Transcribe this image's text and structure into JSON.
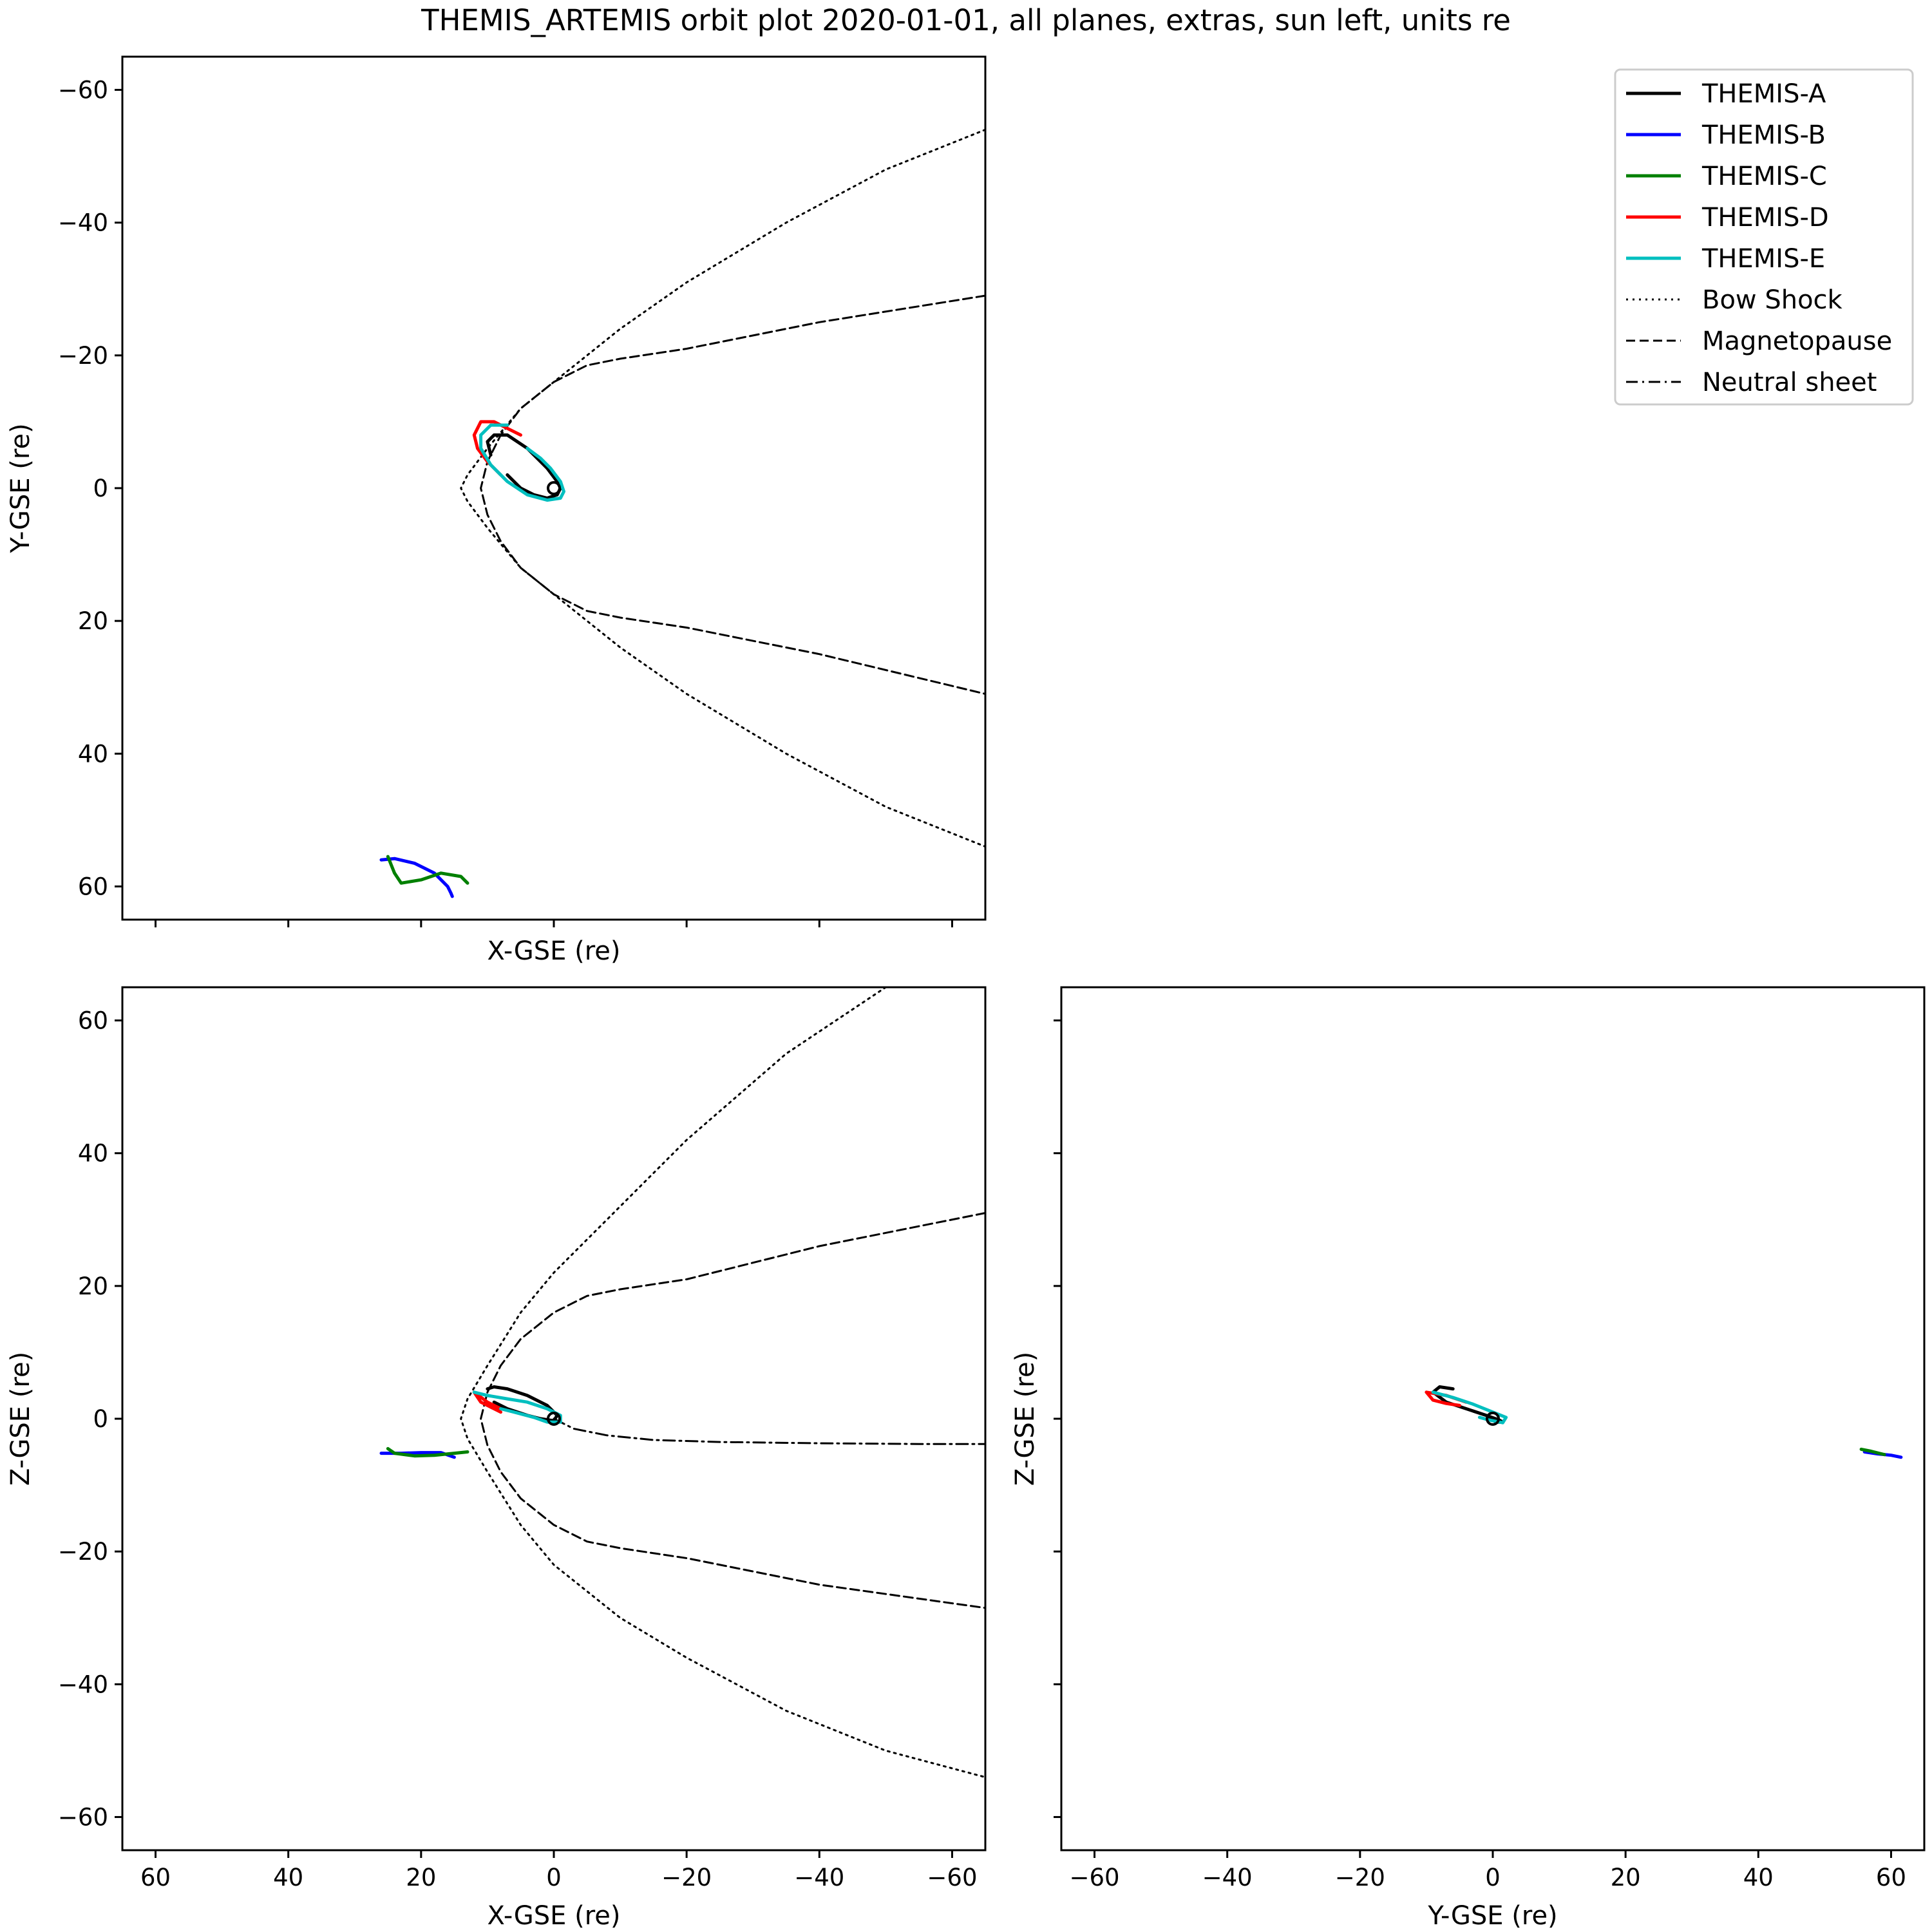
{
  "figure": {
    "title": "THEMIS_ARTEMIS orbit plot 2020-01-01, all planes, extras, sun left, units re"
  },
  "colors": {
    "THEMIS-A": "#000000",
    "THEMIS-B": "#0000ff",
    "THEMIS-C": "#008000",
    "THEMIS-D": "#ff0000",
    "THEMIS-E": "#00bfbf",
    "model_lines": "#000000"
  },
  "legend": {
    "placement": "top-right",
    "entries": [
      {
        "label": "THEMIS-A",
        "style": "solid",
        "color": "#000000"
      },
      {
        "label": "THEMIS-B",
        "style": "solid",
        "color": "#0000ff"
      },
      {
        "label": "THEMIS-C",
        "style": "solid",
        "color": "#008000"
      },
      {
        "label": "THEMIS-D",
        "style": "solid",
        "color": "#ff0000"
      },
      {
        "label": "THEMIS-E",
        "style": "solid",
        "color": "#00bfbf"
      },
      {
        "label": "Bow Shock",
        "style": "dotted",
        "color": "#000000"
      },
      {
        "label": "Magnetopause",
        "style": "dashed",
        "color": "#000000"
      },
      {
        "label": "Neutral sheet",
        "style": "dashdot",
        "color": "#000000"
      }
    ]
  },
  "chart_data": [
    {
      "id": "xy",
      "type": "line",
      "title": "",
      "xlabel": "X-GSE (re)",
      "ylabel": "Y-GSE (re)",
      "xlim": [
        65,
        -65
      ],
      "ylim": [
        65,
        -65
      ],
      "xticks": [
        60,
        40,
        20,
        0,
        -20,
        -40,
        -60
      ],
      "yticks": [
        -60,
        -40,
        -20,
        0,
        20,
        40,
        60
      ],
      "show_xtick_labels": false,
      "grid": false,
      "series": [
        {
          "name": "Bow Shock",
          "style": "dotted",
          "color": "#000000",
          "x": [
            -65,
            -50,
            -35,
            -20,
            -10,
            0,
            5,
            10,
            13,
            14,
            13,
            10,
            5,
            0,
            -10,
            -20,
            -35,
            -50,
            -65
          ],
          "y": [
            -54,
            -48,
            -40,
            -31,
            -24,
            -16,
            -12,
            -6,
            -2,
            0,
            2,
            6,
            12,
            16,
            24,
            31,
            40,
            48,
            54
          ]
        },
        {
          "name": "Magnetopause",
          "style": "dashed",
          "color": "#000000",
          "x": [
            -65,
            -40,
            -20,
            -10,
            -5,
            0,
            5,
            8,
            10,
            11,
            10,
            8,
            5,
            0,
            -5,
            -10,
            -20,
            -40,
            -65
          ],
          "y": [
            -29,
            -25,
            -21,
            -19.5,
            -18.5,
            -16,
            -12,
            -8,
            -4,
            0,
            4,
            8,
            12,
            16,
            18.5,
            19.5,
            21,
            25,
            31
          ]
        },
        {
          "name": "THEMIS-A",
          "style": "solid",
          "color": "#000000",
          "x": [
            9.5,
            10,
            9,
            7,
            4,
            1,
            -0.5,
            -1,
            -0.5,
            1,
            3,
            5,
            7
          ],
          "y": [
            -5,
            -7,
            -8,
            -8,
            -6,
            -3,
            -1,
            0,
            1,
            1.5,
            1,
            0,
            -2
          ]
        },
        {
          "name": "THEMIS-B",
          "style": "solid",
          "color": "#0000ff",
          "x": [
            26,
            24,
            21,
            18,
            16,
            15.5,
            15.3
          ],
          "y": [
            56,
            55.8,
            56.5,
            58,
            60,
            61,
            61.5
          ]
        },
        {
          "name": "THEMIS-C",
          "style": "solid",
          "color": "#008000",
          "x": [
            25,
            24,
            23,
            20,
            17,
            14,
            13
          ],
          "y": [
            55.5,
            58,
            59.5,
            59,
            58,
            58.5,
            59.5
          ]
        },
        {
          "name": "THEMIS-D",
          "style": "solid",
          "color": "#ff0000",
          "x": [
            8,
            10,
            11.5,
            12,
            11,
            9,
            7,
            5
          ],
          "y": [
            -2,
            -4,
            -6,
            -8,
            -10,
            -10,
            -9,
            -8
          ]
        },
        {
          "name": "THEMIS-E",
          "style": "solid",
          "color": "#00bfbf",
          "x": [
            4,
            2,
            0.5,
            -1,
            -1.5,
            -1,
            1,
            4,
            7,
            9.5,
            11,
            11,
            9.5,
            7
          ],
          "y": [
            -6,
            -4.5,
            -3,
            -1,
            0.5,
            1.5,
            1.8,
            1,
            -1,
            -3.5,
            -6,
            -8,
            -9.5,
            -9.5
          ]
        }
      ]
    },
    {
      "id": "xz",
      "type": "line",
      "title": "",
      "xlabel": "X-GSE (re)",
      "ylabel": "Z-GSE (re)",
      "xlim": [
        65,
        -65
      ],
      "ylim": [
        -65,
        65
      ],
      "xticks": [
        60,
        40,
        20,
        0,
        -20,
        -40,
        -60
      ],
      "yticks": [
        60,
        40,
        20,
        0,
        -20,
        -40,
        -60
      ],
      "show_xtick_labels": true,
      "grid": false,
      "series": [
        {
          "name": "Bow Shock",
          "style": "dotted",
          "color": "#000000",
          "x": [
            -50,
            -35,
            -20,
            -10,
            0,
            5,
            10,
            13,
            14,
            13,
            10,
            5,
            0,
            -10,
            -20,
            -35,
            -50,
            -65
          ],
          "y": [
            65,
            55,
            42,
            32,
            22,
            16,
            8,
            3,
            0,
            -3,
            -8,
            -16,
            -22,
            -30,
            -36,
            -44,
            -50,
            -54
          ]
        },
        {
          "name": "Magnetopause",
          "style": "dashed",
          "color": "#000000",
          "x": [
            -65,
            -40,
            -20,
            -10,
            -5,
            0,
            5,
            8,
            10,
            11,
            10,
            8,
            5,
            0,
            -5,
            -10,
            -20,
            -40,
            -65
          ],
          "y": [
            31,
            26,
            21,
            19.5,
            18.5,
            16,
            12,
            8,
            4,
            0,
            -4,
            -8,
            -12,
            -16,
            -18.5,
            -19.5,
            -21,
            -25,
            -28.5
          ]
        },
        {
          "name": "Neutral sheet",
          "style": "dashdot",
          "color": "#000000",
          "x": [
            0,
            -3,
            -8,
            -15,
            -25,
            -40,
            -55,
            -65
          ],
          "y": [
            0,
            -1.5,
            -2.5,
            -3.2,
            -3.5,
            -3.7,
            -3.8,
            -3.8
          ]
        },
        {
          "name": "THEMIS-A",
          "style": "solid",
          "color": "#000000",
          "x": [
            10,
            9,
            7,
            4,
            1,
            -0.5,
            0,
            2,
            4,
            7,
            9
          ],
          "y": [
            4.5,
            4.8,
            4.5,
            3.5,
            2,
            0.5,
            -0.3,
            0,
            0.5,
            1.5,
            2.5
          ]
        },
        {
          "name": "THEMIS-B",
          "style": "solid",
          "color": "#0000ff",
          "x": [
            26,
            23,
            20,
            17,
            15
          ],
          "y": [
            -5.2,
            -5.2,
            -5.1,
            -5.1,
            -5.8
          ]
        },
        {
          "name": "THEMIS-C",
          "style": "solid",
          "color": "#008000",
          "x": [
            25,
            24,
            21,
            18,
            15,
            13
          ],
          "y": [
            -4.5,
            -5.2,
            -5.6,
            -5.5,
            -5.2,
            -5
          ]
        },
        {
          "name": "THEMIS-D",
          "style": "solid",
          "color": "#ff0000",
          "x": [
            8,
            10,
            12,
            11,
            9,
            8
          ],
          "y": [
            1.5,
            2.5,
            4,
            2.5,
            1.5,
            1
          ]
        },
        {
          "name": "THEMIS-E",
          "style": "solid",
          "color": "#00bfbf",
          "x": [
            12,
            10,
            7,
            4,
            1,
            -1,
            -1,
            1,
            3,
            6,
            8
          ],
          "y": [
            4,
            3.5,
            3,
            2.5,
            1.5,
            0.5,
            -0.5,
            -0.5,
            0.2,
            1,
            1.5
          ]
        }
      ]
    },
    {
      "id": "yz",
      "type": "line",
      "title": "",
      "xlabel": "Y-GSE (re)",
      "ylabel": "Z-GSE (re)",
      "xlim": [
        -65,
        65
      ],
      "ylim": [
        -65,
        65
      ],
      "xticks": [
        -60,
        -40,
        -20,
        0,
        20,
        40,
        60
      ],
      "yticks": [
        60,
        40,
        20,
        0,
        -20,
        -40,
        -60
      ],
      "show_ytick_labels": false,
      "grid": false,
      "series": [
        {
          "name": "THEMIS-A",
          "style": "solid",
          "color": "#000000",
          "x": [
            -6,
            -8,
            -9,
            -7,
            -4,
            -1,
            1,
            1.5,
            0.5,
            -0.5
          ],
          "y": [
            4.5,
            4.8,
            4,
            2.5,
            1.5,
            0.5,
            -0.2,
            -0.5,
            -0.5,
            0
          ]
        },
        {
          "name": "THEMIS-B",
          "style": "solid",
          "color": "#0000ff",
          "x": [
            56,
            58,
            60,
            61.5
          ],
          "y": [
            -5,
            -5.3,
            -5.5,
            -5.8
          ]
        },
        {
          "name": "THEMIS-C",
          "style": "solid",
          "color": "#008000",
          "x": [
            55.5,
            57,
            59
          ],
          "y": [
            -4.6,
            -4.9,
            -5.4
          ]
        },
        {
          "name": "THEMIS-D",
          "style": "solid",
          "color": "#ff0000",
          "x": [
            -4,
            -7,
            -10,
            -9,
            -7,
            -5
          ],
          "y": [
            2.5,
            3.5,
            4,
            2.8,
            2.3,
            2
          ]
        },
        {
          "name": "THEMIS-E",
          "style": "solid",
          "color": "#00bfbf",
          "x": [
            -9,
            -6,
            -3,
            0,
            2,
            1.5,
            -0.5,
            -2
          ],
          "y": [
            4,
            3.2,
            2.2,
            1,
            0.2,
            -0.6,
            -0.2,
            0.2
          ]
        }
      ]
    }
  ]
}
